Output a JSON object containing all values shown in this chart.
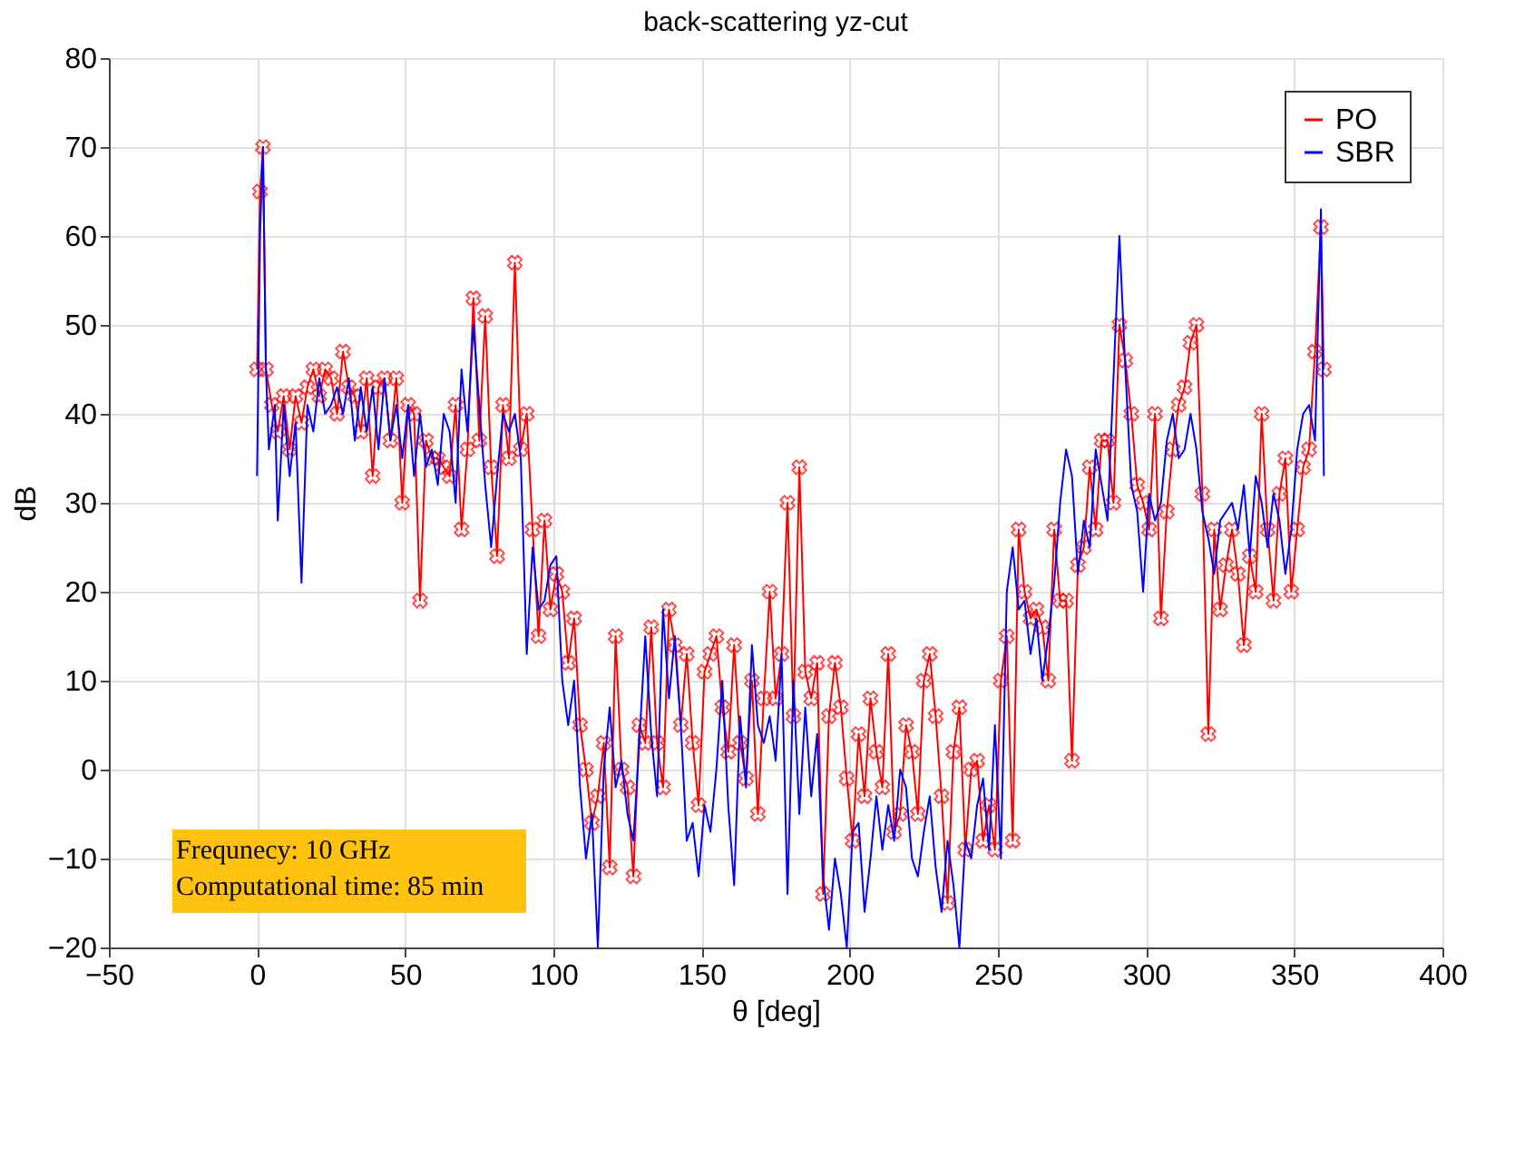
{
  "chart_data": {
    "type": "line",
    "title": "back-scattering yz-cut",
    "xlabel": "θ [deg]",
    "ylabel": "dB",
    "xlim": [
      -50,
      400
    ],
    "xticks": [
      -50,
      0,
      50,
      100,
      150,
      200,
      250,
      300,
      350,
      400
    ],
    "ylim": [
      -20,
      80
    ],
    "yticks": [
      -20,
      -10,
      0,
      10,
      20,
      30,
      40,
      50,
      60,
      70,
      80
    ],
    "grid": true,
    "legend": "top right",
    "line_style": "solid",
    "annotations": [
      "Frequnecy: 10 GHz",
      "Computational time: 85 min"
    ],
    "series": [
      {
        "name": "PO",
        "color": "#ff0000",
        "marker": "cross",
        "x": [
          0,
          1,
          2,
          3,
          5,
          7,
          9,
          11,
          13,
          15,
          17,
          19,
          21,
          23,
          25,
          27,
          29,
          31,
          33,
          35,
          37,
          39,
          41,
          43,
          45,
          47,
          49,
          51,
          53,
          55,
          57,
          59,
          61,
          63,
          65,
          67,
          69,
          71,
          73,
          75,
          77,
          79,
          81,
          83,
          85,
          87,
          89,
          91,
          93,
          95,
          97,
          99,
          101,
          103,
          105,
          107,
          109,
          111,
          113,
          115,
          117,
          119,
          121,
          123,
          125,
          127,
          129,
          131,
          133,
          135,
          137,
          139,
          141,
          143,
          145,
          147,
          149,
          151,
          153,
          155,
          157,
          159,
          161,
          163,
          165,
          167,
          169,
          171,
          173,
          175,
          177,
          179,
          181,
          183,
          185,
          187,
          189,
          191,
          193,
          195,
          197,
          199,
          201,
          203,
          205,
          207,
          209,
          211,
          213,
          215,
          217,
          219,
          221,
          223,
          225,
          227,
          229,
          231,
          233,
          235,
          237,
          239,
          241,
          243,
          245,
          247,
          249,
          251,
          253,
          255,
          257,
          259,
          261,
          263,
          265,
          267,
          269,
          271,
          273,
          275,
          277,
          279,
          281,
          283,
          285,
          287,
          289,
          291,
          293,
          295,
          297,
          299,
          301,
          303,
          305,
          307,
          309,
          311,
          313,
          315,
          317,
          319,
          321,
          323,
          325,
          327,
          329,
          331,
          333,
          335,
          337,
          339,
          341,
          343,
          345,
          347,
          349,
          351,
          353,
          355,
          357,
          359,
          360
        ],
        "values": [
          45,
          65,
          70,
          45,
          41,
          38,
          42,
          36,
          42,
          39,
          43,
          45,
          42,
          45,
          44,
          40,
          47,
          43,
          42,
          38,
          44,
          33,
          43,
          44,
          37,
          44,
          30,
          41,
          40,
          19,
          37,
          35,
          35,
          34,
          33,
          41,
          27,
          36,
          53,
          37,
          51,
          34,
          24,
          41,
          35,
          57,
          36,
          40,
          27,
          15,
          28,
          18,
          22,
          20,
          12,
          17,
          5,
          0,
          -6,
          -3,
          3,
          -11,
          15,
          0,
          -2,
          -12,
          5,
          3,
          16,
          3,
          -2,
          18,
          14,
          5,
          13,
          3,
          -4,
          11,
          13,
          15,
          7,
          2,
          14,
          3,
          -1,
          10,
          -5,
          8,
          20,
          8,
          13,
          30,
          6,
          34,
          11,
          8,
          12,
          -14,
          6,
          12,
          7,
          -1,
          -8,
          4,
          -3,
          8,
          2,
          -2,
          13,
          -7,
          -5,
          5,
          2,
          -5,
          10,
          13,
          6,
          -3,
          -15,
          2,
          7,
          -9,
          0,
          1,
          -8,
          -4,
          -9,
          10,
          15,
          -8,
          27,
          20,
          17,
          18,
          16,
          10,
          27,
          19,
          19,
          1,
          23,
          25,
          34,
          27,
          37,
          37,
          30,
          50,
          46,
          40,
          32,
          30,
          27,
          40,
          17,
          29,
          36,
          41,
          43,
          48,
          50,
          31,
          4,
          27,
          18,
          23,
          27,
          22,
          14,
          24,
          20,
          40,
          27,
          19,
          31,
          35,
          20,
          27,
          34,
          36,
          47,
          61,
          45
        ]
      },
      {
        "name": "SBR",
        "color": "#0000ff",
        "marker": "none",
        "x": [
          0,
          1,
          2,
          3,
          4,
          6,
          7,
          9,
          11,
          13,
          15,
          17,
          19,
          21,
          23,
          25,
          27,
          29,
          31,
          33,
          35,
          37,
          39,
          41,
          43,
          45,
          47,
          49,
          51,
          53,
          55,
          57,
          59,
          61,
          63,
          65,
          67,
          69,
          71,
          73,
          75,
          77,
          79,
          81,
          83,
          85,
          87,
          89,
          91,
          93,
          95,
          97,
          99,
          101,
          103,
          105,
          107,
          109,
          111,
          113,
          115,
          117,
          119,
          121,
          123,
          125,
          127,
          129,
          131,
          133,
          135,
          137,
          139,
          141,
          143,
          145,
          147,
          149,
          151,
          153,
          155,
          157,
          159,
          161,
          163,
          165,
          167,
          169,
          171,
          173,
          175,
          177,
          179,
          181,
          183,
          185,
          187,
          189,
          191,
          193,
          195,
          197,
          199,
          201,
          203,
          205,
          207,
          209,
          211,
          213,
          215,
          217,
          219,
          221,
          223,
          225,
          227,
          229,
          231,
          233,
          235,
          237,
          239,
          241,
          243,
          245,
          247,
          249,
          251,
          253,
          255,
          257,
          259,
          261,
          263,
          265,
          267,
          269,
          271,
          273,
          275,
          277,
          279,
          281,
          283,
          285,
          287,
          289,
          291,
          293,
          295,
          297,
          299,
          301,
          303,
          305,
          307,
          309,
          311,
          313,
          315,
          317,
          319,
          321,
          323,
          325,
          327,
          329,
          331,
          333,
          335,
          337,
          339,
          341,
          343,
          345,
          347,
          349,
          351,
          353,
          355,
          357,
          359,
          360
        ],
        "values": [
          33,
          60,
          70,
          45,
          36,
          41,
          28,
          41,
          33,
          39,
          21,
          41,
          38,
          44,
          40,
          41,
          43,
          40,
          44,
          37,
          43,
          38,
          43,
          36,
          44,
          37,
          41,
          35,
          41,
          33,
          40,
          34,
          36,
          32,
          40,
          38,
          30,
          45,
          38,
          50,
          41,
          32,
          25,
          33,
          40,
          38,
          40,
          35,
          13,
          25,
          18,
          19,
          23,
          24,
          10,
          5,
          10,
          -2,
          -10,
          -5,
          -20,
          0,
          7,
          -2,
          1,
          -5,
          -8,
          3,
          15,
          4,
          -3,
          18,
          8,
          15,
          5,
          -8,
          -6,
          -12,
          -4,
          -7,
          0,
          10,
          -4,
          -13,
          6,
          -2,
          14,
          5,
          3,
          6,
          1,
          13,
          -14,
          10,
          -5,
          7,
          -3,
          4,
          -12,
          -18,
          -10,
          -14,
          -20,
          -7,
          -6,
          -16,
          -10,
          -3,
          -9,
          -4,
          -8,
          0,
          -2,
          -10,
          -12,
          -7,
          -3,
          -11,
          -16,
          -8,
          -13,
          -20,
          -8,
          -10,
          -4,
          -1,
          -9,
          5,
          -10,
          20,
          25,
          18,
          19,
          13,
          17,
          10,
          15,
          21,
          30,
          36,
          33,
          22,
          28,
          25,
          36,
          32,
          28,
          44,
          60,
          45,
          32,
          29,
          20,
          31,
          28,
          30,
          37,
          40,
          35,
          36,
          40,
          36,
          29,
          26,
          22,
          28,
          29,
          30,
          27,
          32,
          24,
          33,
          30,
          25,
          31,
          28,
          22,
          27,
          36,
          40,
          41,
          37,
          63,
          33
        ]
      }
    ]
  }
}
